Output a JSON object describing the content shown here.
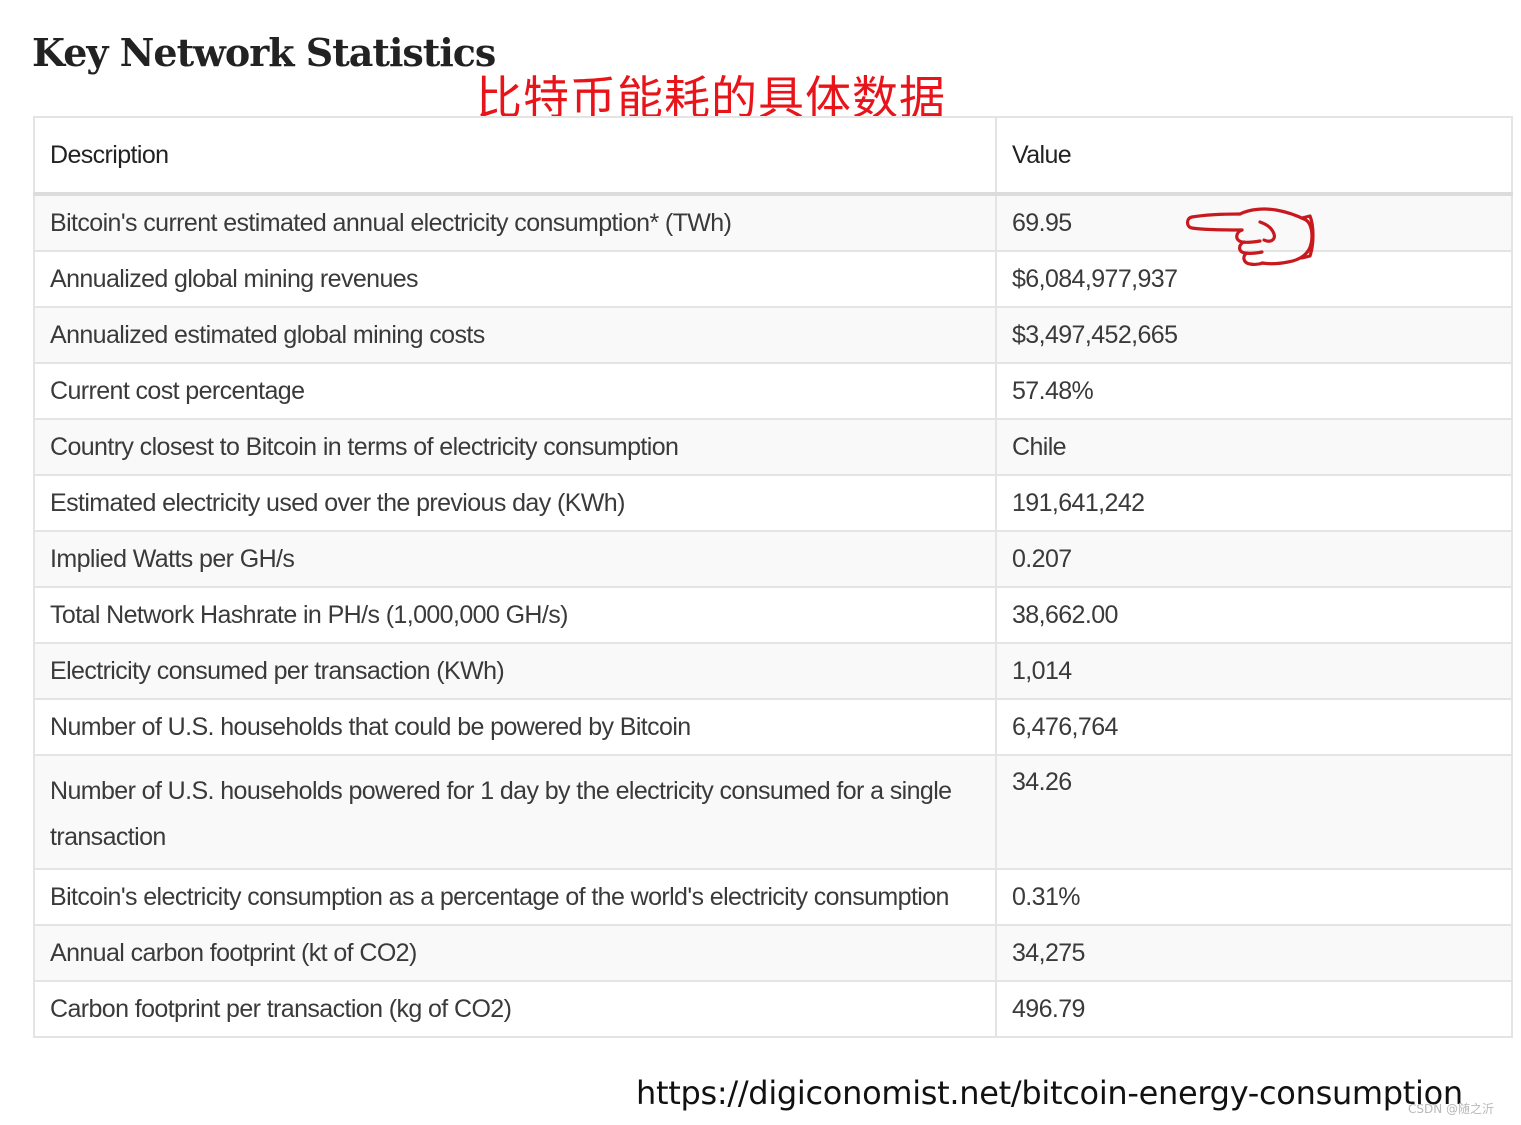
{
  "page": {
    "title": "Key Network Statistics",
    "annotation": "比特币能耗的具体数据",
    "source_url": "https://digiconomist.net/bitcoin-energy-consumption",
    "watermark": "CSDN @随之沂"
  },
  "table": {
    "headers": [
      "Description",
      "Value"
    ],
    "rows": [
      {
        "description": "Bitcoin's current estimated annual electricity consumption* (TWh)",
        "value": "69.95"
      },
      {
        "description": "Annualized global mining revenues",
        "value": "$6,084,977,937"
      },
      {
        "description": "Annualized estimated global mining costs",
        "value": "$3,497,452,665"
      },
      {
        "description": "Current cost percentage",
        "value": "57.48%"
      },
      {
        "description": "Country closest to Bitcoin in terms of electricity consumption",
        "value": "Chile"
      },
      {
        "description": "Estimated electricity used over the previous day (KWh)",
        "value": "191,641,242"
      },
      {
        "description": "Implied Watts per GH/s",
        "value": "0.207"
      },
      {
        "description": "Total Network Hashrate in PH/s (1,000,000 GH/s)",
        "value": "38,662.00"
      },
      {
        "description": "Electricity consumed per transaction (KWh)",
        "value": "1,014"
      },
      {
        "description": "Number of U.S. households that could be powered by Bitcoin",
        "value": "6,476,764"
      },
      {
        "description": "Number of U.S. households powered for 1 day by the electricity consumed for a single transaction",
        "value": "34.26"
      },
      {
        "description": "Bitcoin's electricity consumption as a percentage of the world's electricity consumption",
        "value": "0.31%"
      },
      {
        "description": "Annual carbon footprint (kt of CO2)",
        "value": "34,275"
      },
      {
        "description": "Carbon footprint per transaction (kg of CO2)",
        "value": "496.79"
      }
    ]
  },
  "icons": {
    "pointer": "pointing-hand-icon"
  },
  "colors": {
    "annotation": "#e8141a",
    "pointer": "#c8191e"
  }
}
